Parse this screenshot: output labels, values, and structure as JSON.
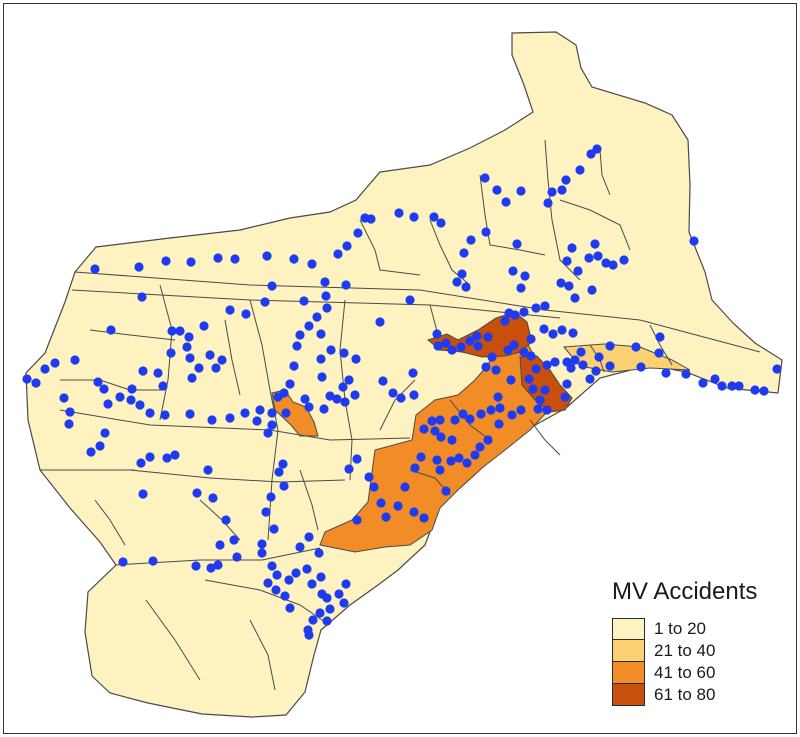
{
  "map": {
    "legend": {
      "title": "MV Accidents",
      "classes": [
        {
          "label": "1 to 20",
          "color": "#fdf2c0"
        },
        {
          "label": "21 to 40",
          "color": "#fbd174"
        },
        {
          "label": "41 to 60",
          "color": "#f28c27"
        },
        {
          "label": "61 to 80",
          "color": "#c94f0c"
        }
      ]
    },
    "colors": {
      "background": "#ffffff",
      "frame": "#333333",
      "boundary": "#4a4a4a",
      "accident_point": "#1f3bf0"
    }
  }
}
